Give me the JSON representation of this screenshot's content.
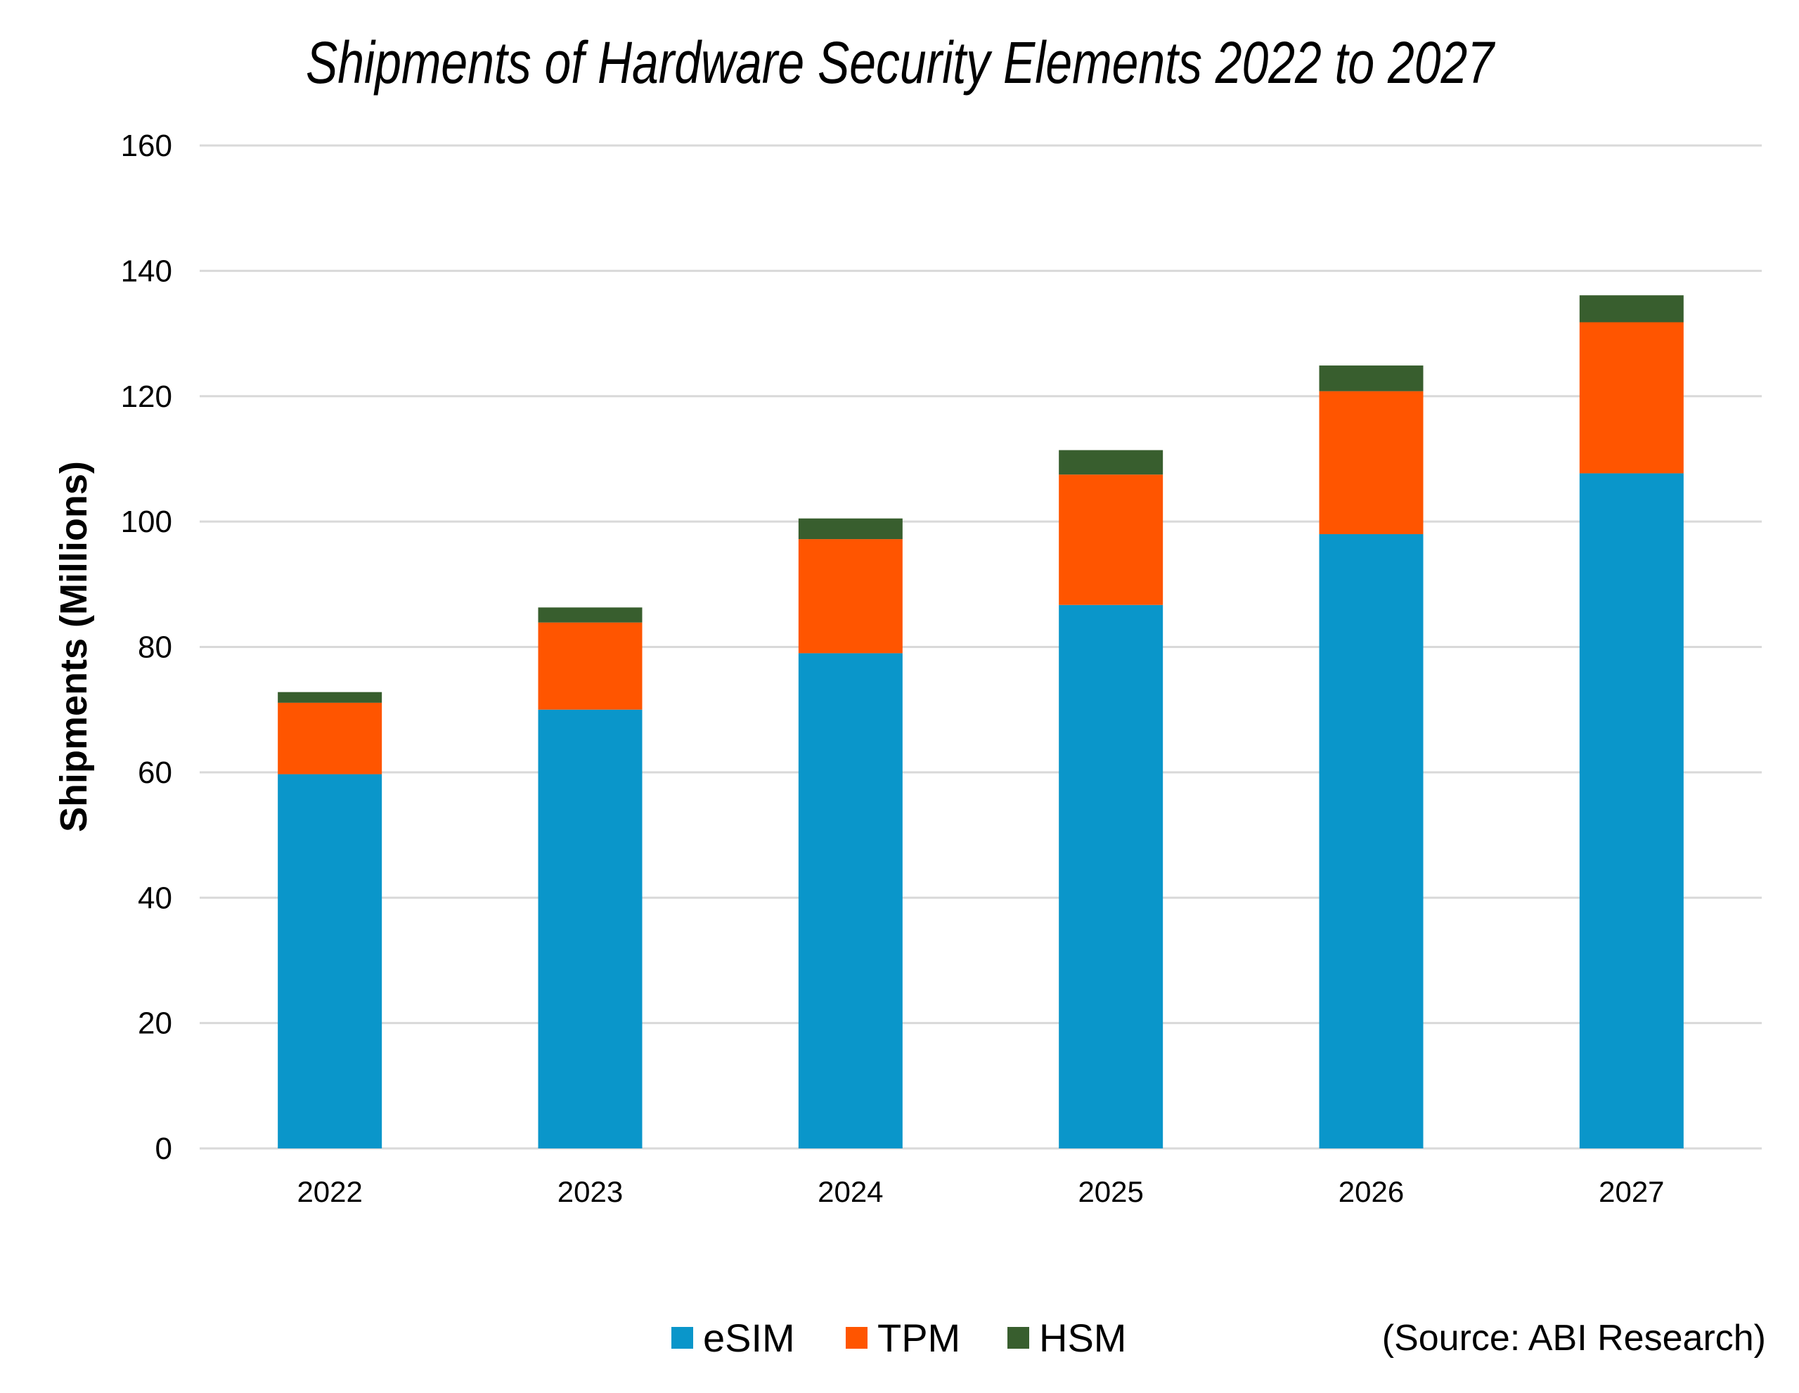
{
  "chart_data": {
    "type": "bar",
    "stacked": true,
    "title": "Shipments of Hardware Security Elements 2022 to 2027",
    "xlabel": "",
    "ylabel": "Shipments (Millions)",
    "ylim": [
      0,
      160
    ],
    "yticks": [
      0,
      20,
      40,
      60,
      80,
      100,
      120,
      140,
      160
    ],
    "grid": true,
    "legend_position": "bottom",
    "categories": [
      "2022",
      "2023",
      "2024",
      "2025",
      "2026",
      "2027"
    ],
    "series": [
      {
        "name": "eSIM",
        "color": "#0A96CA",
        "values": [
          59.7,
          70.0,
          79.0,
          86.7,
          98.0,
          107.7
        ]
      },
      {
        "name": "TPM",
        "color": "#FF5500",
        "values": [
          11.4,
          13.9,
          18.2,
          20.8,
          22.8,
          24.1
        ]
      },
      {
        "name": "HSM",
        "color": "#385E2E",
        "values": [
          1.7,
          2.4,
          3.3,
          3.9,
          4.1,
          4.3
        ]
      }
    ],
    "annotations": [
      "(Source: ABI Research)"
    ]
  }
}
